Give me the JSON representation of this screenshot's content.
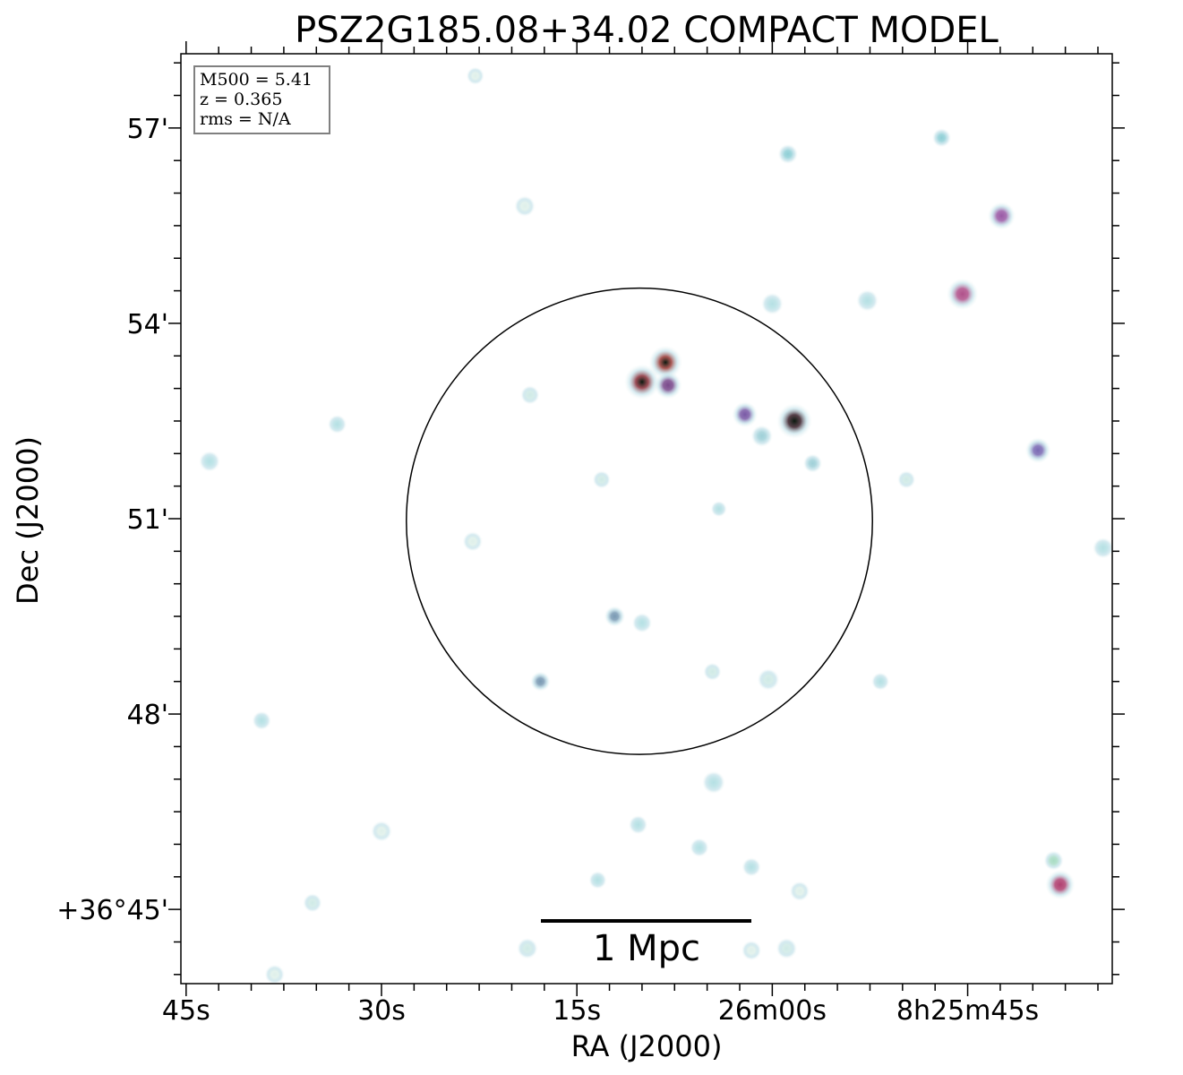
{
  "chart_data": {
    "type": "scatter",
    "title": "PSZ2G185.08+34.02 COMPACT MODEL",
    "xlabel": "RA (J2000)",
    "ylabel": "Dec (J2000)",
    "x_ticks": [
      {
        "value": 45,
        "label": "45s"
      },
      {
        "value": 30,
        "label": "30s"
      },
      {
        "value": 15,
        "label": "15s"
      },
      {
        "value": 0,
        "label": "26m00s"
      },
      {
        "value": -15,
        "label": "8h25m45s"
      }
    ],
    "y_ticks": [
      {
        "value": 57,
        "label": "57'"
      },
      {
        "value": 54,
        "label": "54'"
      },
      {
        "value": 51,
        "label": "51'"
      },
      {
        "value": 48,
        "label": "48'"
      },
      {
        "value": 45,
        "label": "+36°45'"
      }
    ],
    "xlim": [
      45.4,
      -26.1
    ],
    "ylim": [
      43.86,
      58.14
    ],
    "info_box": [
      "M500 = 5.41",
      "z = 0.365",
      "rms = N/A"
    ],
    "scalebar_label": "1 Mpc",
    "r500_circle": {
      "ra_offset_sec": 10.2,
      "dec_arcmin": 50.96,
      "radius_arcmin": 3.58
    },
    "sources": [
      {
        "x": 10.0,
        "y": 53.1,
        "flux": 1.0,
        "color": "#8b2f3a"
      },
      {
        "x": 8.2,
        "y": 53.4,
        "flux": 0.9,
        "color": "#9a3a36"
      },
      {
        "x": 8.0,
        "y": 53.05,
        "flux": 0.6,
        "color": "#7a4a8c"
      },
      {
        "x": -1.7,
        "y": 52.5,
        "flux": 1.0,
        "color": "#3a1f2a"
      },
      {
        "x": 2.1,
        "y": 52.6,
        "flux": 0.5,
        "color": "#7a5aa6"
      },
      {
        "x": 0.8,
        "y": 52.27,
        "flux": 0.3,
        "color": "#9fd0d8"
      },
      {
        "x": -3.1,
        "y": 51.85,
        "flux": 0.15,
        "color": "#9fd0d8"
      },
      {
        "x": -1.2,
        "y": 56.6,
        "flux": 0.2,
        "color": "#8fcfd6"
      },
      {
        "x": -14.6,
        "y": 54.45,
        "flux": 0.8,
        "color": "#b0508a"
      },
      {
        "x": -17.6,
        "y": 55.65,
        "flux": 0.6,
        "color": "#9a5aa6"
      },
      {
        "x": -13.0,
        "y": 56.85,
        "flux": 0.15,
        "color": "#8fcfd6"
      },
      {
        "x": -7.3,
        "y": 54.35,
        "flux": 0.3,
        "color": "#b5e0e4"
      },
      {
        "x": 0.0,
        "y": 54.3,
        "flux": 0.3,
        "color": "#b5e0e4"
      },
      {
        "x": -20.4,
        "y": 52.05,
        "flux": 0.5,
        "color": "#7a6ab4"
      },
      {
        "x": -22.1,
        "y": 45.38,
        "flux": 0.7,
        "color": "#b04070"
      },
      {
        "x": -21.6,
        "y": 45.75,
        "flux": 0.2,
        "color": "#a8dcc4"
      },
      {
        "x": -25.4,
        "y": 50.55,
        "flux": 0.25,
        "color": "#b5e0e4"
      },
      {
        "x": 4.1,
        "y": 51.15,
        "flux": 0.0,
        "color": "#b5e0e4"
      },
      {
        "x": 12.1,
        "y": 49.5,
        "flux": 0.25,
        "color": "#7a9ab4"
      },
      {
        "x": 10.0,
        "y": 49.4,
        "flux": 0.2,
        "color": "#b5e0e4"
      },
      {
        "x": 17.8,
        "y": 48.5,
        "flux": 0.2,
        "color": "#7a9ab4"
      },
      {
        "x": 0.3,
        "y": 48.53,
        "flux": 0.3,
        "color": "#cfeae6"
      },
      {
        "x": 4.6,
        "y": 48.65,
        "flux": 0.1,
        "color": "#cfeae6"
      },
      {
        "x": 4.5,
        "y": 46.95,
        "flux": 0.35,
        "color": "#b5e0e4"
      },
      {
        "x": 10.3,
        "y": 46.3,
        "flux": 0.15,
        "color": "#b5e0e4"
      },
      {
        "x": 5.6,
        "y": 45.95,
        "flux": 0.15,
        "color": "#b5e0e4"
      },
      {
        "x": 1.6,
        "y": 45.65,
        "flux": 0.15,
        "color": "#b5e0e4"
      },
      {
        "x": -2.1,
        "y": 45.28,
        "flux": 0.2,
        "color": "#dff0ea"
      },
      {
        "x": -8.3,
        "y": 48.5,
        "flux": 0.1,
        "color": "#b5e0e4"
      },
      {
        "x": 13.4,
        "y": 45.45,
        "flux": 0.1,
        "color": "#b5e0e4"
      },
      {
        "x": 18.8,
        "y": 44.4,
        "flux": 0.25,
        "color": "#cfeae6"
      },
      {
        "x": -1.1,
        "y": 44.4,
        "flux": 0.25,
        "color": "#cfeae6"
      },
      {
        "x": 1.6,
        "y": 44.37,
        "flux": 0.2,
        "color": "#dff0ea"
      },
      {
        "x": 30.0,
        "y": 46.2,
        "flux": 0.25,
        "color": "#dff0ea"
      },
      {
        "x": 35.3,
        "y": 45.1,
        "flux": 0.15,
        "color": "#cfeae6"
      },
      {
        "x": 39.2,
        "y": 47.9,
        "flux": 0.15,
        "color": "#b5e0e4"
      },
      {
        "x": 43.2,
        "y": 51.88,
        "flux": 0.25,
        "color": "#b5e0e4"
      },
      {
        "x": 33.4,
        "y": 52.45,
        "flux": 0.15,
        "color": "#b5e0e4"
      },
      {
        "x": 23.0,
        "y": 50.65,
        "flux": 0.2,
        "color": "#dff0ea"
      },
      {
        "x": 18.6,
        "y": 52.9,
        "flux": 0.15,
        "color": "#cfeae6"
      },
      {
        "x": 19.0,
        "y": 55.8,
        "flux": 0.25,
        "color": "#dff0ea"
      },
      {
        "x": 13.1,
        "y": 51.6,
        "flux": 0.1,
        "color": "#cfeae6"
      },
      {
        "x": -10.3,
        "y": 51.6,
        "flux": 0.1,
        "color": "#cfeae6"
      },
      {
        "x": 22.8,
        "y": 57.8,
        "flux": 0.1,
        "color": "#dff0ea"
      },
      {
        "x": 38.2,
        "y": 44.0,
        "flux": 0.2,
        "color": "#dff0ea"
      }
    ]
  }
}
